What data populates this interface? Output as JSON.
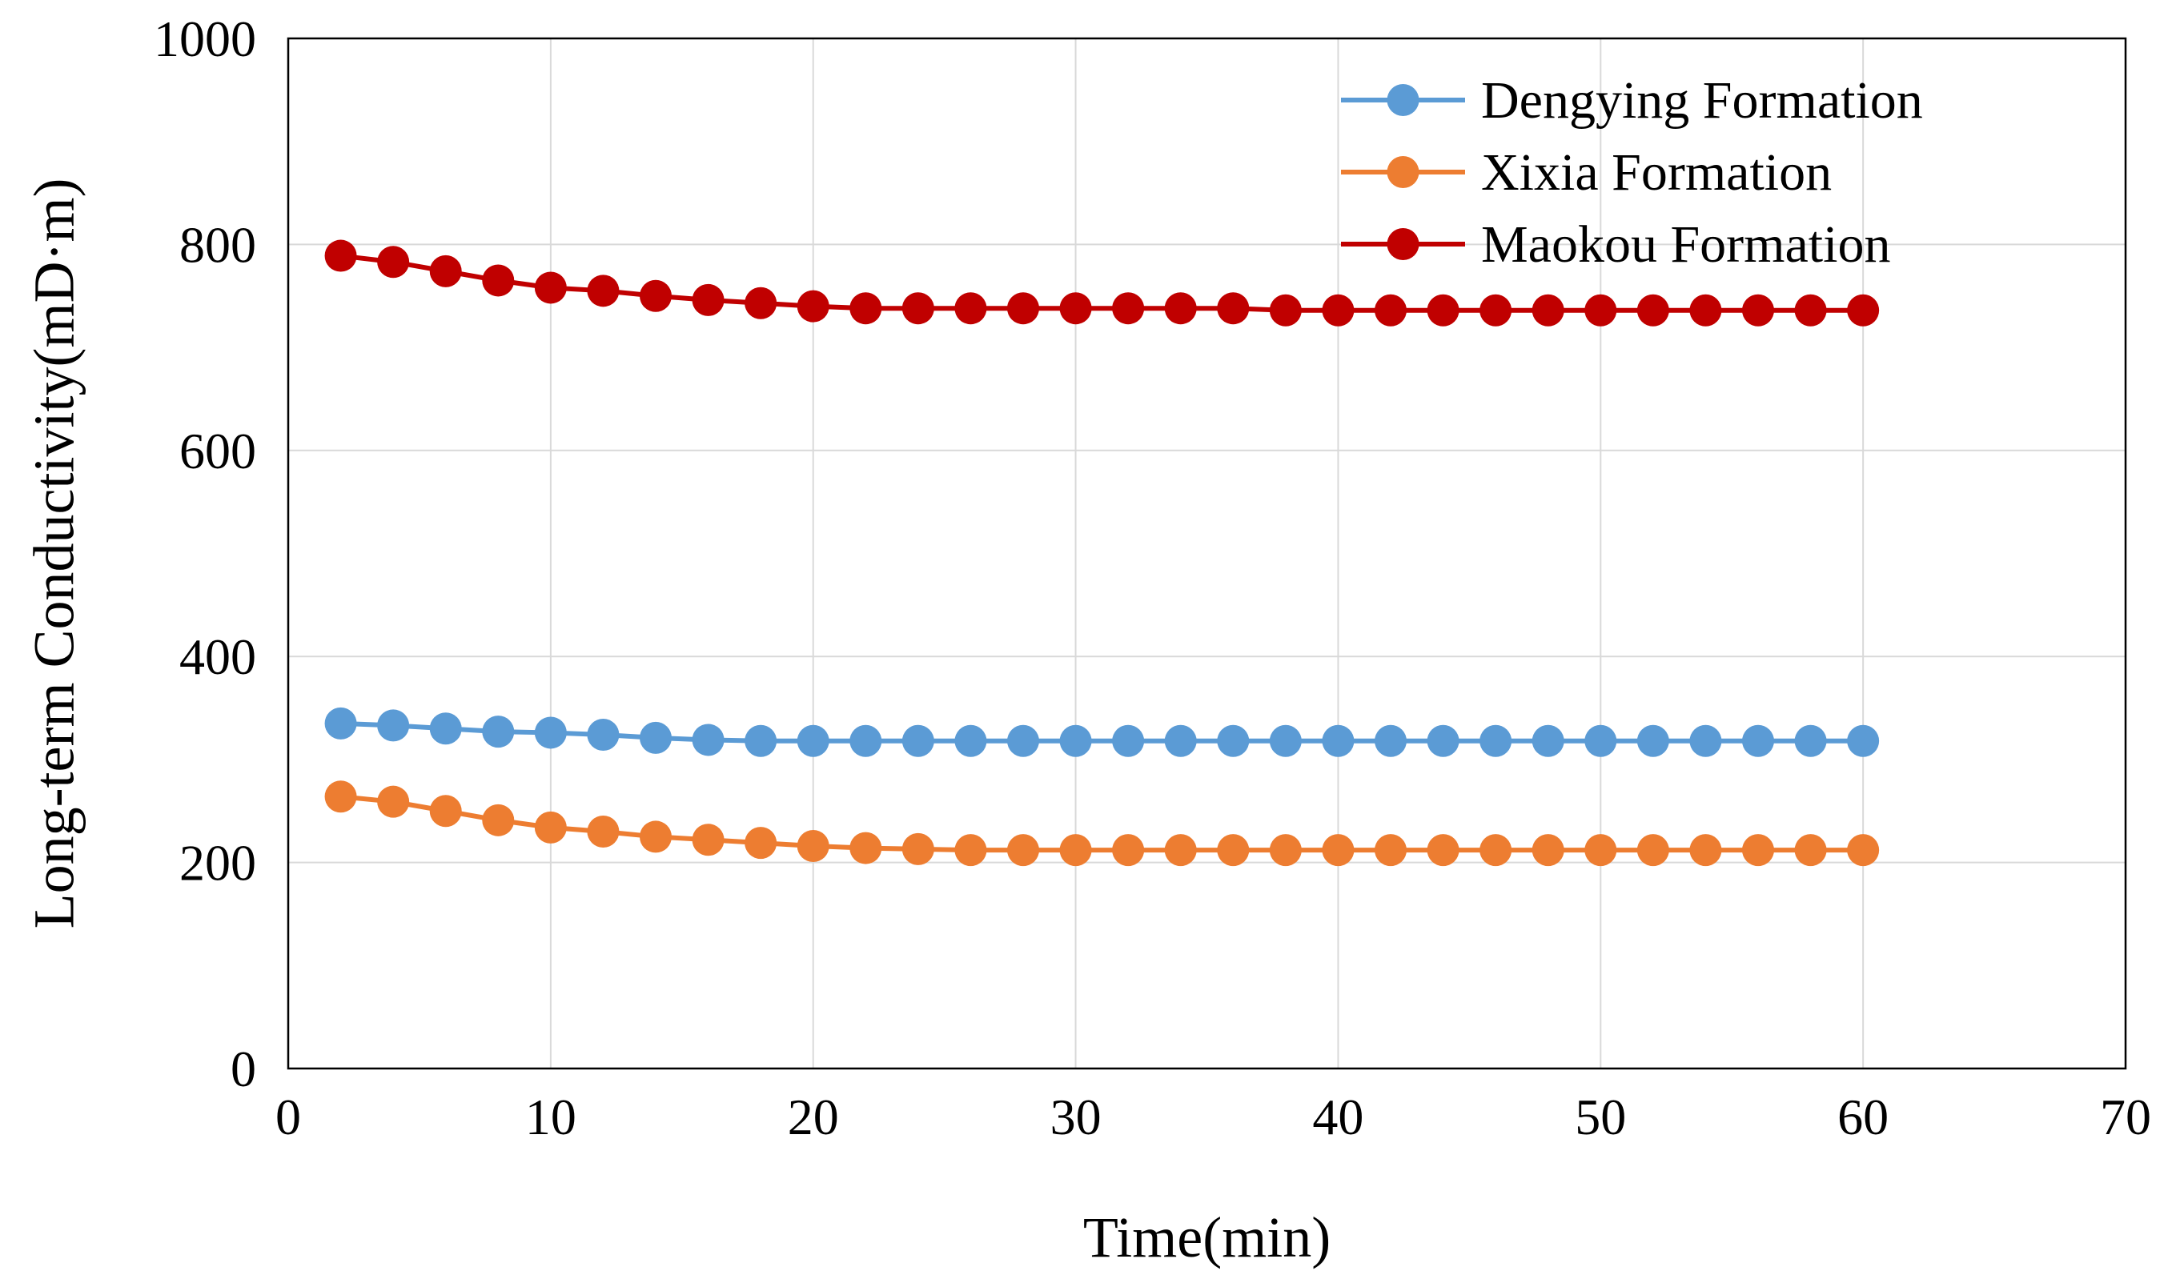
{
  "chart_data": {
    "type": "line",
    "title": "",
    "xlabel": "Time(min)",
    "ylabel": "Long-term Conductivity(mD·m)",
    "xlim": [
      0,
      70
    ],
    "ylim": [
      0,
      1000
    ],
    "xticks": [
      0,
      10,
      20,
      30,
      40,
      50,
      60,
      70
    ],
    "yticks": [
      0,
      200,
      400,
      600,
      800,
      1000
    ],
    "grid": true,
    "legend_position": "top-right",
    "x": [
      2,
      4,
      6,
      8,
      10,
      12,
      14,
      16,
      18,
      20,
      22,
      24,
      26,
      28,
      30,
      32,
      34,
      36,
      38,
      40,
      42,
      44,
      46,
      48,
      50,
      52,
      54,
      56,
      58,
      60
    ],
    "series": [
      {
        "name": "Dengying Formation",
        "color": "#5b9bd5",
        "values": [
          335,
          333,
          330,
          327,
          326,
          324,
          321,
          319,
          318,
          318,
          318,
          318,
          318,
          318,
          318,
          318,
          318,
          318,
          318,
          318,
          318,
          318,
          318,
          318,
          318,
          318,
          318,
          318,
          318,
          318
        ]
      },
      {
        "name": "Xixia Formation",
        "color": "#ed7d31",
        "values": [
          264,
          259,
          250,
          241,
          234,
          230,
          225,
          222,
          219,
          216,
          214,
          213,
          212,
          212,
          212,
          212,
          212,
          212,
          212,
          212,
          212,
          212,
          212,
          212,
          212,
          212,
          212,
          212,
          212,
          212
        ]
      },
      {
        "name": "Maokou Formation",
        "color": "#c00000",
        "values": [
          789,
          783,
          774,
          765,
          758,
          755,
          750,
          746,
          743,
          740,
          738,
          738,
          738,
          738,
          738,
          738,
          738,
          738,
          736,
          736,
          736,
          736,
          736,
          736,
          736,
          736,
          736,
          736,
          736,
          736
        ]
      }
    ]
  }
}
